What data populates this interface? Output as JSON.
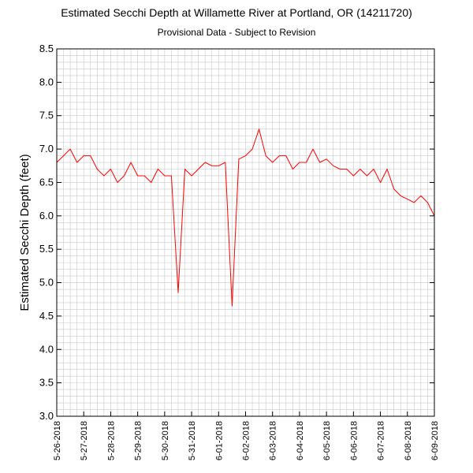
{
  "chart_data": {
    "type": "line",
    "title": "Estimated Secchi Depth at Willamette River at Portland, OR (14211720)",
    "subtitle": "Provisional Data - Subject to Revision",
    "xlabel": "",
    "ylabel": "Estimated Secchi Depth (feet)",
    "ylim": [
      3.0,
      8.5
    ],
    "yticks": [
      "3.0",
      "3.5",
      "4.0",
      "4.5",
      "5.0",
      "5.5",
      "6.0",
      "6.5",
      "7.0",
      "7.5",
      "8.0",
      "8.5"
    ],
    "xticks": [
      "5-26-2018",
      "5-27-2018",
      "5-28-2018",
      "5-29-2018",
      "5-30-2018",
      "5-31-2018",
      "6-01-2018",
      "6-02-2018",
      "6-03-2018",
      "6-04-2018",
      "6-05-2018",
      "6-06-2018",
      "6-07-2018",
      "6-08-2018",
      "6-09-2018"
    ],
    "xlim": [
      "5-26-2018",
      "6-09-2018"
    ],
    "grid": true,
    "series": [
      {
        "color": "#ff0000",
        "x": [
          "5-26-2018",
          "5-26-2018 06:00",
          "5-26-2018 12:00",
          "5-26-2018 18:00",
          "5-27-2018",
          "5-27-2018 06:00",
          "5-27-2018 12:00",
          "5-27-2018 18:00",
          "5-28-2018",
          "5-28-2018 06:00",
          "5-28-2018 12:00",
          "5-28-2018 18:00",
          "5-29-2018",
          "5-29-2018 06:00",
          "5-29-2018 12:00",
          "5-29-2018 18:00",
          "5-30-2018",
          "5-30-2018 06:00",
          "5-30-2018 12:00",
          "5-30-2018 18:00",
          "5-31-2018",
          "5-31-2018 06:00",
          "5-31-2018 12:00",
          "5-31-2018 18:00",
          "6-01-2018",
          "6-01-2018 06:00",
          "6-01-2018 12:00",
          "6-01-2018 18:00",
          "6-02-2018",
          "6-02-2018 06:00",
          "6-02-2018 12:00",
          "6-02-2018 18:00",
          "6-03-2018",
          "6-03-2018 06:00",
          "6-03-2018 12:00",
          "6-03-2018 18:00",
          "6-04-2018",
          "6-04-2018 06:00",
          "6-04-2018 12:00",
          "6-04-2018 18:00",
          "6-05-2018",
          "6-05-2018 06:00",
          "6-05-2018 12:00",
          "6-05-2018 18:00",
          "6-06-2018",
          "6-06-2018 06:00",
          "6-06-2018 12:00",
          "6-06-2018 18:00",
          "6-07-2018",
          "6-07-2018 06:00",
          "6-07-2018 12:00",
          "6-07-2018 18:00",
          "6-08-2018",
          "6-08-2018 06:00",
          "6-08-2018 12:00",
          "6-08-2018 18:00",
          "6-09-2018"
        ],
        "values": [
          6.8,
          6.9,
          7.0,
          6.8,
          6.9,
          6.9,
          6.7,
          6.6,
          6.7,
          6.5,
          6.6,
          6.8,
          6.6,
          6.6,
          6.5,
          6.7,
          6.6,
          6.6,
          4.85,
          6.7,
          6.6,
          6.7,
          6.8,
          6.75,
          6.75,
          6.8,
          4.65,
          6.85,
          6.9,
          7.0,
          7.3,
          6.9,
          6.8,
          6.9,
          6.9,
          6.7,
          6.8,
          6.8,
          7.0,
          6.8,
          6.85,
          6.75,
          6.7,
          6.7,
          6.6,
          6.7,
          6.6,
          6.7,
          6.5,
          6.7,
          6.4,
          6.3,
          6.25,
          6.2,
          6.3,
          6.2,
          6.0
        ]
      }
    ]
  }
}
